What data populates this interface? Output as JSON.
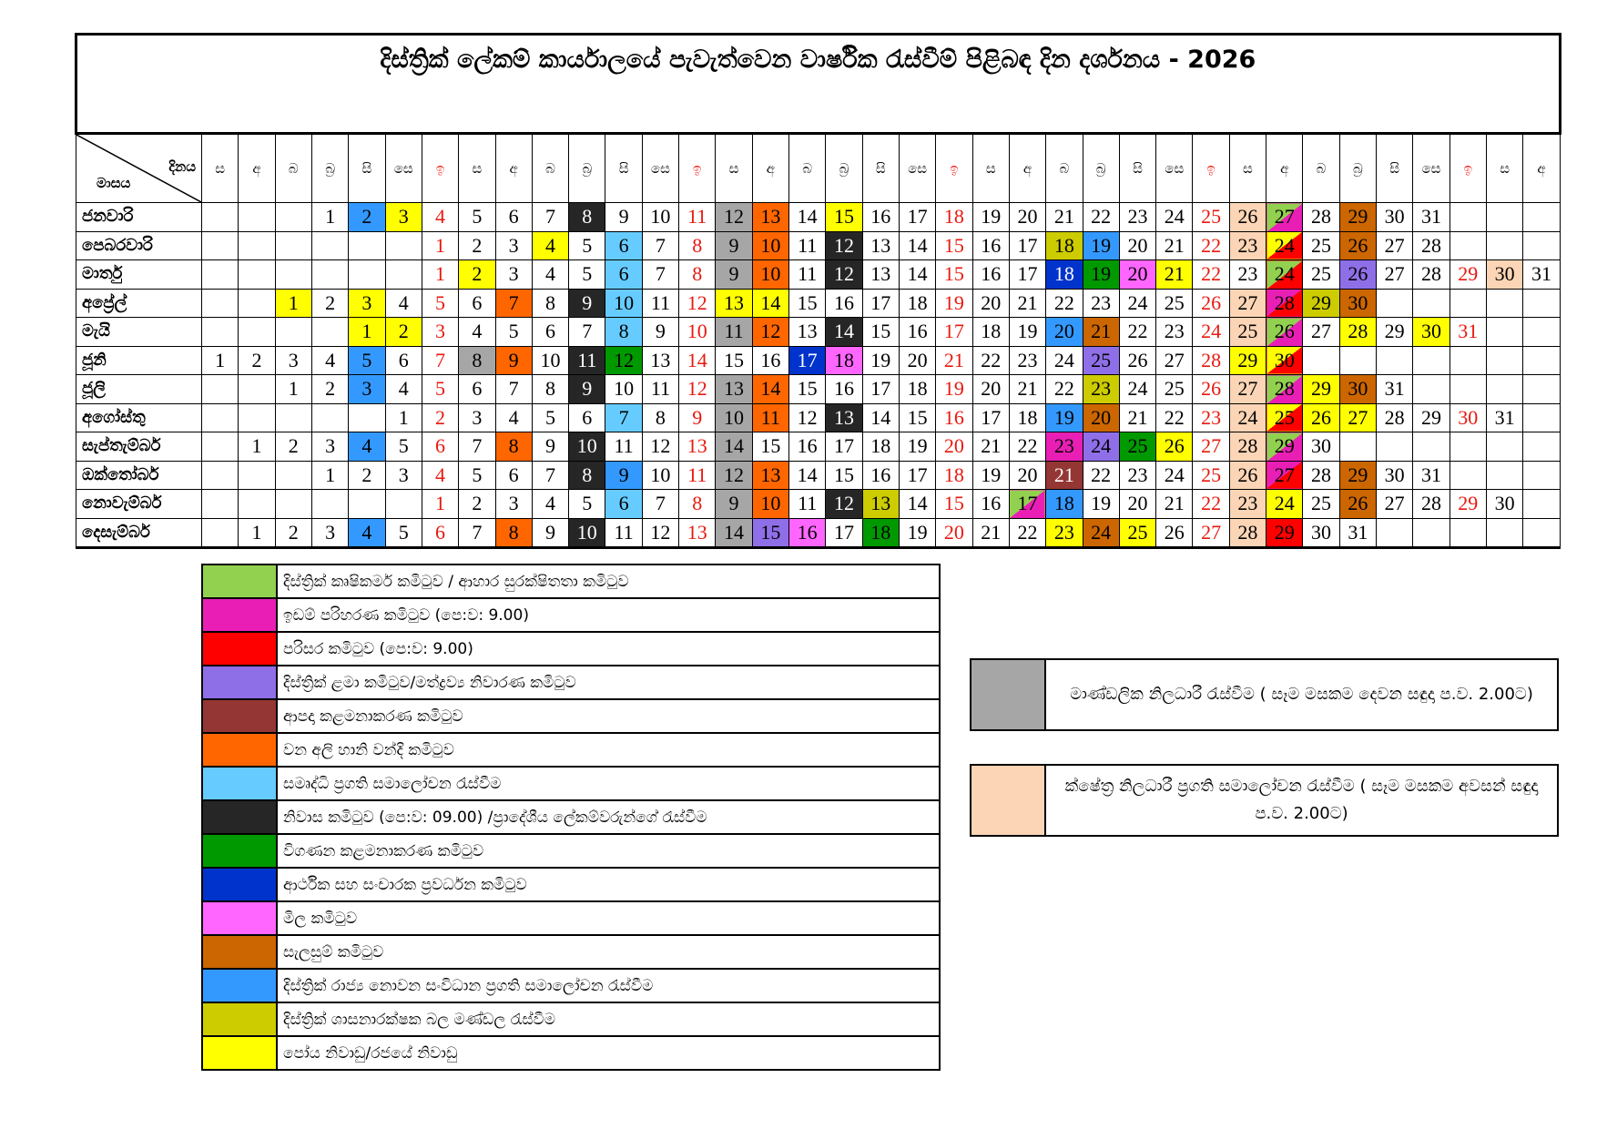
{
  "title": "දිස්ත්‍රික් ලේකම් කාර්යාලයේ පැවැත්වෙන වාර්ෂික රැස්වීම් පිළිබඳ දින දර්ශනය - 2026",
  "corner": {
    "day_label": "දිනය",
    "month_label": "මාසය"
  },
  "weekday_headers": [
    "ස",
    "අ",
    "බ",
    "බ්‍ර",
    "සි",
    "සෙ",
    "ඉ",
    "ස",
    "අ",
    "බ",
    "බ්‍ර",
    "සි",
    "සෙ",
    "ඉ",
    "ස",
    "අ",
    "බ",
    "බ්‍ර",
    "සි",
    "සෙ",
    "ඉ",
    "ස",
    "අ",
    "බ",
    "බ්‍ර",
    "සි",
    "සෙ",
    "ඉ",
    "ස",
    "අ",
    "බ",
    "බ්‍ර",
    "සි",
    "සෙ",
    "ඉ",
    "ස",
    "අ"
  ],
  "colors": {
    "sunday_text": "#e8190f",
    "agri": "#92d050",
    "idam": "#e91fb5",
    "parisara": "#ff0000",
    "lama": "#8f6fe8",
    "apada": "#943634",
    "wana": "#ff6600",
    "samurdhi": "#66ccff",
    "niwasa": "#262626",
    "vigana": "#009900",
    "arthika": "#0033cc",
    "mila": "#ff66ff",
    "salasum": "#cc6600",
    "rajya": "#3399ff",
    "shasana": "#cccc00",
    "poya": "#ffff00",
    "grey": "#a6a6a6",
    "peach": "#fbd5b5"
  },
  "months": [
    {
      "name": "ජනවාරි",
      "offset": 3,
      "days": 31,
      "marks": {
        "2": "rajya",
        "3": "poya",
        "8": "niwasa",
        "12": "grey",
        "13": "wana",
        "15": "poya",
        "26": "peach",
        "27": "agri/idam",
        "29": "salasum"
      }
    },
    {
      "name": "පෙබරවාරි",
      "offset": 6,
      "days": 28,
      "marks": {
        "4": "poya",
        "6": "samurdhi",
        "9": "grey",
        "10": "wana",
        "12": "niwasa",
        "18": "shasana",
        "19": "rajya",
        "23": "peach",
        "24": "poya/parisara",
        "26": "salasum"
      }
    },
    {
      "name": "මාර්තු",
      "offset": 6,
      "days": 31,
      "marks": {
        "2": "poya",
        "6": "samurdhi",
        "9": "grey",
        "10": "wana",
        "12": "niwasa",
        "18": "arthika",
        "19": "vigana",
        "20": "mila",
        "21": "poya",
        "24": "agri/parisara",
        "26": "lama",
        "30": "peach"
      }
    },
    {
      "name": "අප්‍රේල්",
      "offset": 2,
      "days": 30,
      "marks": {
        "1": "poya",
        "3": "poya",
        "7": "wana",
        "9": "niwasa",
        "10": "samurdhi",
        "13": "poya",
        "14": "poya",
        "27": "peach",
        "28": "idam/parisara",
        "29": "shasana",
        "30": "salasum"
      }
    },
    {
      "name": "මැයි",
      "offset": 4,
      "days": 31,
      "marks": {
        "1": "poya",
        "2": "poya",
        "8": "samurdhi",
        "11": "grey",
        "12": "wana",
        "14": "niwasa",
        "20": "rajya",
        "21": "salasum",
        "25": "peach",
        "26": "agri/idam",
        "28": "poya",
        "30": "poya"
      }
    },
    {
      "name": "ජූනි",
      "offset": 0,
      "days": 30,
      "marks": {
        "5": "rajya",
        "8": "grey",
        "9": "wana",
        "11": "niwasa",
        "12": "vigana",
        "17": "arthika",
        "18": "mila",
        "25": "lama",
        "29": "poya",
        "30": "poya/parisara"
      }
    },
    {
      "name": "ජූලි",
      "offset": 2,
      "days": 31,
      "marks": {
        "3": "rajya",
        "9": "niwasa",
        "13": "grey",
        "14": "wana",
        "23": "shasana",
        "27": "peach",
        "28": "agri/idam",
        "29": "poya",
        "30": "salasum"
      }
    },
    {
      "name": "අගෝස්තු",
      "offset": 5,
      "days": 31,
      "marks": {
        "7": "samurdhi",
        "10": "grey",
        "11": "wana",
        "13": "niwasa",
        "19": "rajya",
        "20": "salasum",
        "24": "peach",
        "25": "poya/parisara",
        "26": "poya",
        "27": "poya"
      }
    },
    {
      "name": "සැප්තැම්බර්",
      "offset": 1,
      "days": 30,
      "marks": {
        "4": "rajya",
        "8": "wana",
        "10": "niwasa",
        "14": "grey",
        "23": "idam",
        "24": "lama",
        "25": "vigana",
        "26": "poya",
        "28": "peach",
        "29": "agri/idam"
      }
    },
    {
      "name": "ඔක්තෝබර්",
      "offset": 3,
      "days": 31,
      "marks": {
        "8": "niwasa",
        "9": "rajya",
        "12": "grey",
        "13": "wana",
        "21": "apada",
        "26": "peach",
        "27": "idam/parisara",
        "29": "salasum"
      }
    },
    {
      "name": "නොවැම්බර්",
      "offset": 6,
      "days": 30,
      "marks": {
        "6": "samurdhi",
        "9": "grey",
        "10": "wana",
        "12": "niwasa",
        "13": "shasana",
        "17": "agri/idam",
        "18": "rajya",
        "23": "peach",
        "24": "poya",
        "26": "salasum"
      }
    },
    {
      "name": "දෙසැම්බර්",
      "offset": 1,
      "days": 31,
      "marks": {
        "4": "rajya",
        "8": "wana",
        "10": "niwasa",
        "14": "grey",
        "15": "lama",
        "16": "mila",
        "18": "vigana",
        "23": "poya",
        "24": "salasum",
        "25": "poya",
        "28": "peach",
        "29": "parisara"
      }
    }
  ],
  "legend": [
    {
      "key": "agri",
      "label": "දිස්ත්‍රික් කෘෂිකර්ම කමිටුව / ආහාර සුරක්ෂිතතා කමිටුව"
    },
    {
      "key": "idam",
      "label": "ඉඩම් පරිහරණ කමිටුව (පෙ:ව: 9.00)"
    },
    {
      "key": "parisara",
      "label": "පරිසර කමිටුව (පෙ:ව: 9.00)"
    },
    {
      "key": "lama",
      "label": "දිස්ත්‍රික් ළමා කමිටුව/මත්ද්‍රව්‍ය නිවාරණ කමිටුව"
    },
    {
      "key": "apada",
      "label": "ආපදා කළමනාකරණ කමිටුව"
    },
    {
      "key": "wana",
      "label": "වන අලි හානි වන්දි කමිටුව"
    },
    {
      "key": "samurdhi",
      "label": "සමෘද්ධි ප්‍රගති සමාලෝචන රැස්වීම"
    },
    {
      "key": "niwasa",
      "label": "නිවාස කමිටුව (පෙ:ව: 09.00) /ප්‍රාදේශීය ලේකම්වරුන්ගේ රැස්වීම"
    },
    {
      "key": "vigana",
      "label": "විගණන කළමනාකරණ කමිටුව"
    },
    {
      "key": "arthika",
      "label": "ආර්ථික සහ සංචාරක ප්‍රවර්ධන කමිටුව"
    },
    {
      "key": "mila",
      "label": "මිල කමිටුව"
    },
    {
      "key": "salasum",
      "label": "සැලසුම් කමිටුව"
    },
    {
      "key": "rajya",
      "label": "දිස්ත්‍රික් රාජ්‍ය නොවන සංවිධාන ප්‍රගති සමාලෝචන රැස්වීම"
    },
    {
      "key": "shasana",
      "label": "දිස්ත්‍රික් ශාසනාරක්ෂක බල මණ්ඩල රැස්වීම"
    },
    {
      "key": "poya",
      "label": "පෝය නිවාඩු/රජයේ නිවාඩු"
    }
  ],
  "side_legend": [
    {
      "key": "grey",
      "label": "මාණ්ඩලික නිලධාරී රැස්වීම ( සෑම මසකම දෙවන සඳුදා ප.ව. 2.00ට)"
    },
    {
      "key": "peach",
      "label": "ක්ෂේත්‍ර නිලධාරී ප්‍රගති සමාලෝචන රැස්වීම ( සෑම මසකම අවසන් සඳුදා ප.ව. 2.00ට)"
    }
  ]
}
